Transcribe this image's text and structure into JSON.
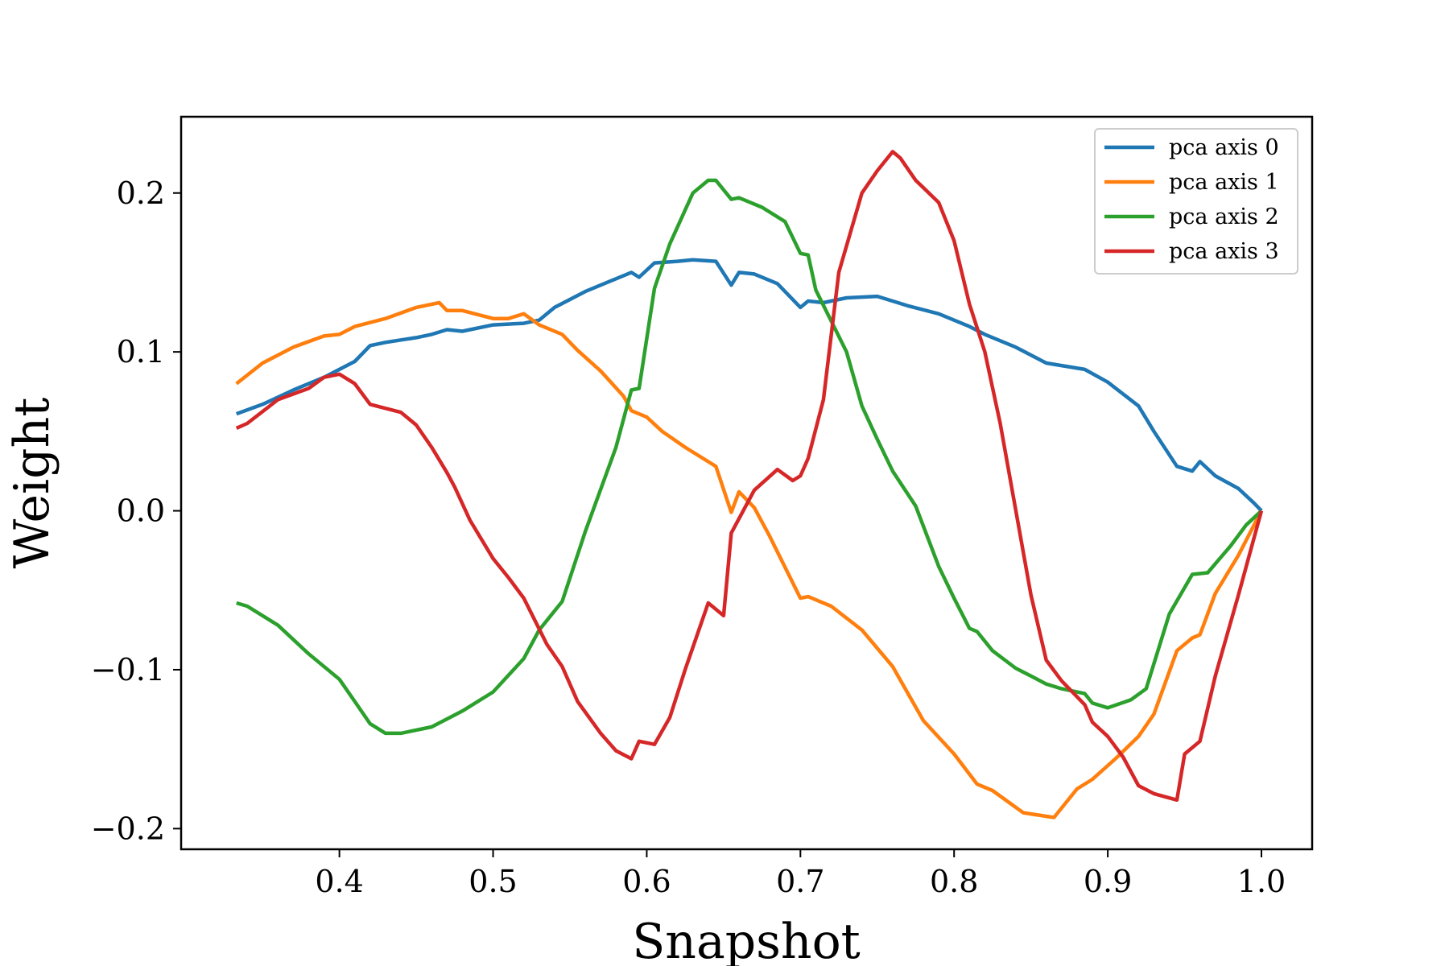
{
  "chart_data": {
    "type": "line",
    "title": "",
    "xlabel": "Snapshot",
    "ylabel": "Weight",
    "xlim": [
      0.297,
      1.033
    ],
    "ylim": [
      -0.213,
      0.248
    ],
    "xticks": [
      0.4,
      0.5,
      0.6,
      0.7,
      0.8,
      0.9,
      1.0
    ],
    "xtick_labels": [
      "0.4",
      "0.5",
      "0.6",
      "0.7",
      "0.8",
      "0.9",
      "1.0"
    ],
    "yticks": [
      -0.2,
      -0.1,
      0.0,
      0.1,
      0.2
    ],
    "ytick_labels": [
      "−0.2",
      "−0.1",
      "0.0",
      "0.1",
      "0.2"
    ],
    "grid": false,
    "legend_position": "top-right",
    "series": [
      {
        "name": "pca axis 0",
        "color": "#1f77b4",
        "points": [
          [
            0.333,
            0.061
          ],
          [
            0.35,
            0.067
          ],
          [
            0.37,
            0.076
          ],
          [
            0.39,
            0.084
          ],
          [
            0.41,
            0.094
          ],
          [
            0.42,
            0.104
          ],
          [
            0.43,
            0.106
          ],
          [
            0.45,
            0.109
          ],
          [
            0.46,
            0.111
          ],
          [
            0.47,
            0.114
          ],
          [
            0.48,
            0.113
          ],
          [
            0.5,
            0.117
          ],
          [
            0.52,
            0.118
          ],
          [
            0.53,
            0.12
          ],
          [
            0.54,
            0.128
          ],
          [
            0.56,
            0.138
          ],
          [
            0.58,
            0.146
          ],
          [
            0.59,
            0.15
          ],
          [
            0.595,
            0.147
          ],
          [
            0.605,
            0.156
          ],
          [
            0.62,
            0.157
          ],
          [
            0.63,
            0.158
          ],
          [
            0.645,
            0.157
          ],
          [
            0.655,
            0.142
          ],
          [
            0.66,
            0.15
          ],
          [
            0.67,
            0.149
          ],
          [
            0.685,
            0.143
          ],
          [
            0.7,
            0.128
          ],
          [
            0.705,
            0.132
          ],
          [
            0.715,
            0.131
          ],
          [
            0.73,
            0.134
          ],
          [
            0.75,
            0.135
          ],
          [
            0.76,
            0.132
          ],
          [
            0.77,
            0.129
          ],
          [
            0.79,
            0.124
          ],
          [
            0.81,
            0.116
          ],
          [
            0.82,
            0.111
          ],
          [
            0.84,
            0.103
          ],
          [
            0.85,
            0.098
          ],
          [
            0.86,
            0.093
          ],
          [
            0.885,
            0.089
          ],
          [
            0.9,
            0.081
          ],
          [
            0.92,
            0.066
          ],
          [
            0.93,
            0.05
          ],
          [
            0.945,
            0.028
          ],
          [
            0.955,
            0.025
          ],
          [
            0.96,
            0.031
          ],
          [
            0.97,
            0.022
          ],
          [
            0.985,
            0.014
          ],
          [
            0.995,
            0.005
          ],
          [
            1.0,
            0.0
          ]
        ]
      },
      {
        "name": "pca axis 1",
        "color": "#ff7f0e",
        "points": [
          [
            0.333,
            0.08
          ],
          [
            0.35,
            0.093
          ],
          [
            0.37,
            0.103
          ],
          [
            0.39,
            0.11
          ],
          [
            0.4,
            0.111
          ],
          [
            0.41,
            0.116
          ],
          [
            0.43,
            0.121
          ],
          [
            0.45,
            0.128
          ],
          [
            0.465,
            0.131
          ],
          [
            0.47,
            0.126
          ],
          [
            0.48,
            0.126
          ],
          [
            0.5,
            0.121
          ],
          [
            0.51,
            0.121
          ],
          [
            0.52,
            0.124
          ],
          [
            0.53,
            0.117
          ],
          [
            0.545,
            0.111
          ],
          [
            0.555,
            0.101
          ],
          [
            0.57,
            0.088
          ],
          [
            0.585,
            0.072
          ],
          [
            0.59,
            0.063
          ],
          [
            0.6,
            0.059
          ],
          [
            0.61,
            0.05
          ],
          [
            0.625,
            0.04
          ],
          [
            0.645,
            0.028
          ],
          [
            0.655,
            -0.001
          ],
          [
            0.66,
            0.012
          ],
          [
            0.67,
            0.002
          ],
          [
            0.68,
            -0.016
          ],
          [
            0.7,
            -0.055
          ],
          [
            0.705,
            -0.054
          ],
          [
            0.72,
            -0.06
          ],
          [
            0.74,
            -0.075
          ],
          [
            0.76,
            -0.098
          ],
          [
            0.78,
            -0.132
          ],
          [
            0.8,
            -0.153
          ],
          [
            0.815,
            -0.172
          ],
          [
            0.825,
            -0.176
          ],
          [
            0.845,
            -0.19
          ],
          [
            0.865,
            -0.193
          ],
          [
            0.88,
            -0.175
          ],
          [
            0.89,
            -0.169
          ],
          [
            0.905,
            -0.156
          ],
          [
            0.92,
            -0.142
          ],
          [
            0.93,
            -0.128
          ],
          [
            0.945,
            -0.088
          ],
          [
            0.955,
            -0.08
          ],
          [
            0.96,
            -0.078
          ],
          [
            0.97,
            -0.052
          ],
          [
            0.985,
            -0.028
          ],
          [
            1.0,
            0.0
          ]
        ]
      },
      {
        "name": "pca axis 2",
        "color": "#2ca02c",
        "points": [
          [
            0.333,
            -0.058
          ],
          [
            0.34,
            -0.06
          ],
          [
            0.36,
            -0.072
          ],
          [
            0.38,
            -0.09
          ],
          [
            0.4,
            -0.106
          ],
          [
            0.41,
            -0.12
          ],
          [
            0.42,
            -0.134
          ],
          [
            0.43,
            -0.14
          ],
          [
            0.44,
            -0.14
          ],
          [
            0.46,
            -0.136
          ],
          [
            0.48,
            -0.126
          ],
          [
            0.5,
            -0.114
          ],
          [
            0.52,
            -0.093
          ],
          [
            0.53,
            -0.075
          ],
          [
            0.545,
            -0.057
          ],
          [
            0.56,
            -0.013
          ],
          [
            0.58,
            0.04
          ],
          [
            0.59,
            0.076
          ],
          [
            0.595,
            0.077
          ],
          [
            0.605,
            0.14
          ],
          [
            0.615,
            0.168
          ],
          [
            0.63,
            0.2
          ],
          [
            0.64,
            0.208
          ],
          [
            0.645,
            0.208
          ],
          [
            0.655,
            0.196
          ],
          [
            0.66,
            0.197
          ],
          [
            0.675,
            0.191
          ],
          [
            0.69,
            0.182
          ],
          [
            0.7,
            0.162
          ],
          [
            0.705,
            0.161
          ],
          [
            0.71,
            0.139
          ],
          [
            0.73,
            0.1
          ],
          [
            0.74,
            0.066
          ],
          [
            0.75,
            0.045
          ],
          [
            0.76,
            0.025
          ],
          [
            0.775,
            0.003
          ],
          [
            0.79,
            -0.035
          ],
          [
            0.8,
            -0.055
          ],
          [
            0.81,
            -0.074
          ],
          [
            0.815,
            -0.076
          ],
          [
            0.825,
            -0.088
          ],
          [
            0.84,
            -0.099
          ],
          [
            0.85,
            -0.104
          ],
          [
            0.86,
            -0.109
          ],
          [
            0.87,
            -0.112
          ],
          [
            0.885,
            -0.115
          ],
          [
            0.89,
            -0.121
          ],
          [
            0.9,
            -0.124
          ],
          [
            0.915,
            -0.119
          ],
          [
            0.925,
            -0.112
          ],
          [
            0.94,
            -0.065
          ],
          [
            0.955,
            -0.04
          ],
          [
            0.965,
            -0.039
          ],
          [
            0.98,
            -0.022
          ],
          [
            0.99,
            -0.009
          ],
          [
            1.0,
            0.0
          ]
        ]
      },
      {
        "name": "pca axis 3",
        "color": "#d62728",
        "points": [
          [
            0.333,
            0.052
          ],
          [
            0.34,
            0.055
          ],
          [
            0.36,
            0.07
          ],
          [
            0.38,
            0.077
          ],
          [
            0.39,
            0.084
          ],
          [
            0.4,
            0.086
          ],
          [
            0.41,
            0.08
          ],
          [
            0.42,
            0.067
          ],
          [
            0.44,
            0.062
          ],
          [
            0.45,
            0.054
          ],
          [
            0.46,
            0.04
          ],
          [
            0.47,
            0.024
          ],
          [
            0.475,
            0.015
          ],
          [
            0.485,
            -0.006
          ],
          [
            0.5,
            -0.03
          ],
          [
            0.51,
            -0.042
          ],
          [
            0.52,
            -0.055
          ],
          [
            0.535,
            -0.084
          ],
          [
            0.545,
            -0.098
          ],
          [
            0.555,
            -0.12
          ],
          [
            0.57,
            -0.14
          ],
          [
            0.58,
            -0.151
          ],
          [
            0.59,
            -0.156
          ],
          [
            0.595,
            -0.145
          ],
          [
            0.605,
            -0.147
          ],
          [
            0.615,
            -0.13
          ],
          [
            0.625,
            -0.1
          ],
          [
            0.64,
            -0.058
          ],
          [
            0.65,
            -0.066
          ],
          [
            0.655,
            -0.014
          ],
          [
            0.67,
            0.013
          ],
          [
            0.685,
            0.026
          ],
          [
            0.695,
            0.019
          ],
          [
            0.7,
            0.022
          ],
          [
            0.705,
            0.033
          ],
          [
            0.715,
            0.07
          ],
          [
            0.725,
            0.15
          ],
          [
            0.74,
            0.2
          ],
          [
            0.75,
            0.214
          ],
          [
            0.76,
            0.226
          ],
          [
            0.765,
            0.222
          ],
          [
            0.775,
            0.208
          ],
          [
            0.79,
            0.194
          ],
          [
            0.8,
            0.17
          ],
          [
            0.81,
            0.13
          ],
          [
            0.82,
            0.1
          ],
          [
            0.83,
            0.055
          ],
          [
            0.85,
            -0.053
          ],
          [
            0.86,
            -0.094
          ],
          [
            0.87,
            -0.107
          ],
          [
            0.885,
            -0.122
          ],
          [
            0.89,
            -0.133
          ],
          [
            0.9,
            -0.142
          ],
          [
            0.91,
            -0.155
          ],
          [
            0.92,
            -0.173
          ],
          [
            0.93,
            -0.178
          ],
          [
            0.945,
            -0.182
          ],
          [
            0.95,
            -0.153
          ],
          [
            0.96,
            -0.145
          ],
          [
            0.97,
            -0.104
          ],
          [
            0.985,
            -0.053
          ],
          [
            1.0,
            0.0
          ]
        ]
      }
    ]
  }
}
